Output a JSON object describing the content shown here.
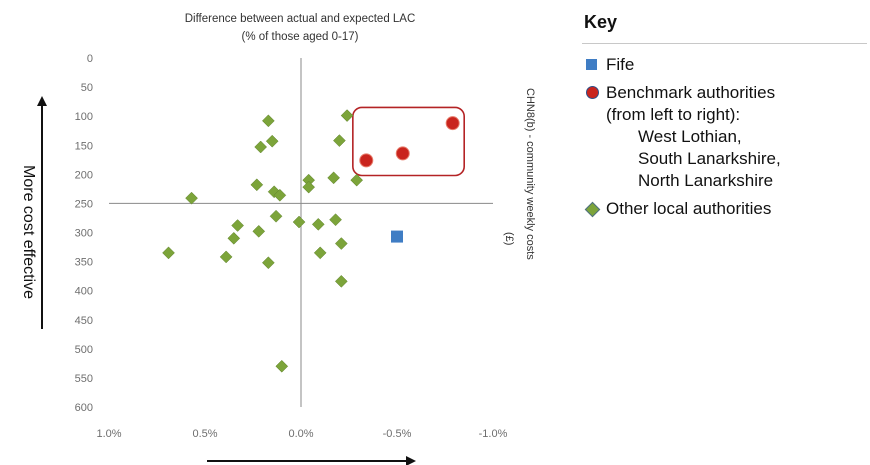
{
  "chart_data": {
    "type": "scatter",
    "title": "Difference between actual and expected LAC",
    "subtitle": "(% of those aged 0-17)",
    "ylabel": "CHN8(b) - community weekly costs",
    "ylabel_unit": "(£)",
    "side_label": "More cost effective",
    "x_ticks": [
      "1.0%",
      "0.5%",
      "0.0%",
      "-0.5%",
      "-1.0%"
    ],
    "x_tick_values": [
      1.0,
      0.5,
      0.0,
      -0.5,
      -1.0
    ],
    "y_ticks": [
      "0",
      "50",
      "100",
      "150",
      "200",
      "250",
      "300",
      "350",
      "400",
      "450",
      "500",
      "550",
      "600"
    ],
    "y_tick_values": [
      0,
      50,
      100,
      150,
      200,
      250,
      300,
      350,
      400,
      450,
      500,
      550,
      600
    ],
    "xlim": [
      1.0,
      -1.0
    ],
    "ylim": [
      600,
      0
    ],
    "axis_cross": {
      "x": 0.0,
      "y": 250
    },
    "y_axis_reversed": true,
    "x_axis_reversed": true,
    "grid": false,
    "series": [
      {
        "name": "Fife",
        "marker": "square",
        "color": "#3f7dc4",
        "points": [
          {
            "x": -0.5,
            "y": 307
          }
        ]
      },
      {
        "name": "Benchmark authorities",
        "marker": "circle",
        "color": "#c9241d",
        "points": [
          {
            "x": -0.34,
            "y": 176
          },
          {
            "x": -0.53,
            "y": 164
          },
          {
            "x": -0.79,
            "y": 112
          }
        ]
      },
      {
        "name": "Other local authorities",
        "marker": "diamond",
        "color": "#7ca43a",
        "points": [
          {
            "x": 0.69,
            "y": 335
          },
          {
            "x": 0.57,
            "y": 241
          },
          {
            "x": 0.39,
            "y": 342
          },
          {
            "x": 0.35,
            "y": 310
          },
          {
            "x": 0.33,
            "y": 288
          },
          {
            "x": 0.23,
            "y": 218
          },
          {
            "x": 0.22,
            "y": 298
          },
          {
            "x": 0.21,
            "y": 153
          },
          {
            "x": 0.17,
            "y": 108
          },
          {
            "x": 0.17,
            "y": 352
          },
          {
            "x": 0.15,
            "y": 143
          },
          {
            "x": 0.14,
            "y": 230
          },
          {
            "x": 0.13,
            "y": 272
          },
          {
            "x": 0.11,
            "y": 236
          },
          {
            "x": 0.1,
            "y": 530
          },
          {
            "x": 0.01,
            "y": 282
          },
          {
            "x": -0.04,
            "y": 210
          },
          {
            "x": -0.04,
            "y": 222
          },
          {
            "x": -0.09,
            "y": 286
          },
          {
            "x": -0.1,
            "y": 335
          },
          {
            "x": -0.17,
            "y": 206
          },
          {
            "x": -0.18,
            "y": 278
          },
          {
            "x": -0.2,
            "y": 142
          },
          {
            "x": -0.21,
            "y": 319
          },
          {
            "x": -0.21,
            "y": 384
          },
          {
            "x": -0.24,
            "y": 99
          },
          {
            "x": -0.29,
            "y": 210
          }
        ]
      }
    ],
    "annotations": [
      {
        "type": "box",
        "label": "benchmark-highlight",
        "x_range": [
          -0.27,
          -0.85
        ],
        "y_range": [
          85,
          202
        ],
        "color": "#b42325"
      },
      {
        "type": "arrow",
        "label": "x-direction-arrow",
        "direction": "right"
      },
      {
        "type": "arrow",
        "label": "y-direction-arrow",
        "direction": "up"
      }
    ]
  },
  "key": {
    "title": "Key",
    "items": [
      {
        "marker": "square",
        "lines": [
          "Fife"
        ]
      },
      {
        "marker": "circle",
        "lines": [
          "Benchmark authorities",
          "(from left to right):"
        ],
        "indented": [
          "West Lothian,",
          "South Lanarkshire,",
          "North Lanarkshire"
        ]
      },
      {
        "marker": "diamond",
        "lines": [
          "Other local authorities"
        ]
      }
    ]
  }
}
